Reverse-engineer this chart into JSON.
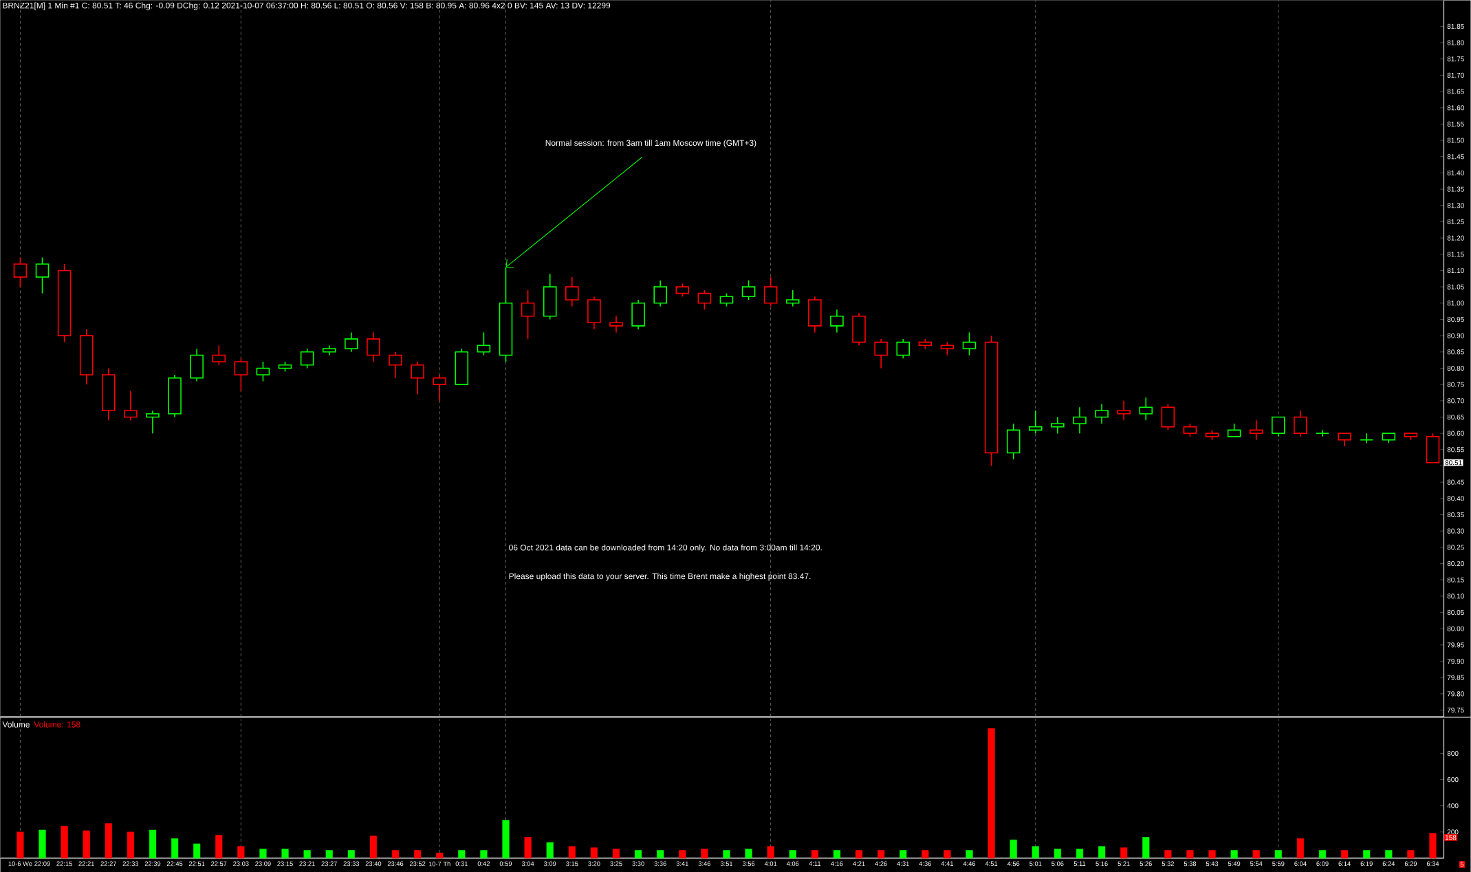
{
  "chart_data": [
    {
      "type": "candlestick",
      "title": "BRNZ21[M]  1 Min  #1 C: 80.51 T: 46 Chg: -0.09 DChg: 0.12 2021-10-07 06:37:00 H: 80.56 L: 80.51 O: 80.56 V: 158 B: 80.95 A: 80.96 4x2 0 BV: 145 AV: 13 DV: 12299",
      "categories": [
        "10-6 We",
        "22:09",
        "22:15",
        "22:21",
        "22:27",
        "22:33",
        "22:39",
        "22:45",
        "22:51",
        "22:57",
        "23:03",
        "23:09",
        "23:15",
        "23:21",
        "23:27",
        "23:33",
        "23:40",
        "23:46",
        "23:52",
        "10-7 Th",
        "0:31",
        "0:42",
        "0:59",
        "3:04",
        "3:09",
        "3:15",
        "3:20",
        "3:25",
        "3:30",
        "3:36",
        "3:41",
        "3:46",
        "3:51",
        "3:56",
        "4:01",
        "4:06",
        "4:11",
        "4:16",
        "4:21",
        "4:26",
        "4:31",
        "4:36",
        "4:41",
        "4:46",
        "4:51",
        "4:56",
        "5:01",
        "5:06",
        "5:11",
        "5:16",
        "5:21",
        "5:26",
        "5:32",
        "5:38",
        "5:43",
        "5:49",
        "5:54",
        "5:59",
        "6:04",
        "6:09",
        "6:14",
        "6:19",
        "6:24",
        "6:29",
        "6:34"
      ],
      "ohlc": [
        [
          81.12,
          81.14,
          81.05,
          81.08
        ],
        [
          81.08,
          81.14,
          81.03,
          81.12
        ],
        [
          81.1,
          81.12,
          80.88,
          80.9
        ],
        [
          80.9,
          80.92,
          80.75,
          80.78
        ],
        [
          80.78,
          80.8,
          80.64,
          80.67
        ],
        [
          80.67,
          80.73,
          80.64,
          80.65
        ],
        [
          80.65,
          80.67,
          80.6,
          80.66
        ],
        [
          80.66,
          80.78,
          80.65,
          80.77
        ],
        [
          80.77,
          80.86,
          80.76,
          80.84
        ],
        [
          80.84,
          80.87,
          80.81,
          80.82
        ],
        [
          80.82,
          80.83,
          80.73,
          80.78
        ],
        [
          80.78,
          80.82,
          80.76,
          80.8
        ],
        [
          80.8,
          80.82,
          80.79,
          80.81
        ],
        [
          80.81,
          80.86,
          80.8,
          80.85
        ],
        [
          80.85,
          80.87,
          80.84,
          80.86
        ],
        [
          80.86,
          80.91,
          80.85,
          80.89
        ],
        [
          80.89,
          80.91,
          80.82,
          80.84
        ],
        [
          80.84,
          80.85,
          80.77,
          80.81
        ],
        [
          80.81,
          80.82,
          80.72,
          80.77
        ],
        [
          80.77,
          80.78,
          80.7,
          80.75
        ],
        [
          80.75,
          80.86,
          80.75,
          80.85
        ],
        [
          80.85,
          80.91,
          80.84,
          80.87
        ],
        [
          80.84,
          81.11,
          80.82,
          81.0
        ],
        [
          81.0,
          81.04,
          80.89,
          80.96
        ],
        [
          80.96,
          81.09,
          80.95,
          81.05
        ],
        [
          81.05,
          81.08,
          80.99,
          81.01
        ],
        [
          81.01,
          81.02,
          80.92,
          80.94
        ],
        [
          80.94,
          80.96,
          80.91,
          80.93
        ],
        [
          80.93,
          81.01,
          80.92,
          81.0
        ],
        [
          81.0,
          81.07,
          80.99,
          81.05
        ],
        [
          81.05,
          81.06,
          81.02,
          81.03
        ],
        [
          81.03,
          81.04,
          80.98,
          81.0
        ],
        [
          81.0,
          81.03,
          80.99,
          81.02
        ],
        [
          81.02,
          81.07,
          81.01,
          81.05
        ],
        [
          81.05,
          81.08,
          80.99,
          81.0
        ],
        [
          81.0,
          81.04,
          80.99,
          81.01
        ],
        [
          81.01,
          81.02,
          80.91,
          80.93
        ],
        [
          80.93,
          80.98,
          80.91,
          80.96
        ],
        [
          80.96,
          80.97,
          80.87,
          80.88
        ],
        [
          80.88,
          80.89,
          80.8,
          80.84
        ],
        [
          80.84,
          80.89,
          80.83,
          80.88
        ],
        [
          80.88,
          80.89,
          80.86,
          80.87
        ],
        [
          80.87,
          80.88,
          80.84,
          80.86
        ],
        [
          80.86,
          80.91,
          80.84,
          80.88
        ],
        [
          80.88,
          80.9,
          80.5,
          80.54
        ],
        [
          80.54,
          80.63,
          80.52,
          80.61
        ],
        [
          80.61,
          80.67,
          80.6,
          80.62
        ],
        [
          80.62,
          80.65,
          80.6,
          80.63
        ],
        [
          80.63,
          80.68,
          80.6,
          80.65
        ],
        [
          80.65,
          80.69,
          80.63,
          80.67
        ],
        [
          80.67,
          80.7,
          80.64,
          80.66
        ],
        [
          80.66,
          80.71,
          80.64,
          80.68
        ],
        [
          80.68,
          80.69,
          80.61,
          80.62
        ],
        [
          80.62,
          80.63,
          80.59,
          80.6
        ],
        [
          80.6,
          80.61,
          80.58,
          80.59
        ],
        [
          80.59,
          80.63,
          80.59,
          80.61
        ],
        [
          80.61,
          80.64,
          80.58,
          80.6
        ],
        [
          80.6,
          80.65,
          80.59,
          80.65
        ],
        [
          80.65,
          80.67,
          80.59,
          80.6
        ],
        [
          80.6,
          80.61,
          80.59,
          80.6
        ],
        [
          80.6,
          80.6,
          80.56,
          80.58
        ],
        [
          80.58,
          80.6,
          80.57,
          80.58
        ],
        [
          80.58,
          80.6,
          80.57,
          80.6
        ],
        [
          80.6,
          80.6,
          80.58,
          80.59
        ],
        [
          80.59,
          80.6,
          80.51,
          80.51
        ]
      ],
      "colors": [
        "#ff0000",
        "#00ff00",
        "#ff0000",
        "#ff0000",
        "#ff0000",
        "#ff0000",
        "#00ff00",
        "#00ff00",
        "#00ff00",
        "#ff0000",
        "#ff0000",
        "#00ff00",
        "#00ff00",
        "#00ff00",
        "#00ff00",
        "#00ff00",
        "#ff0000",
        "#ff0000",
        "#ff0000",
        "#ff0000",
        "#00ff00",
        "#00ff00",
        "#00ff00",
        "#ff0000",
        "#00ff00",
        "#ff0000",
        "#ff0000",
        "#ff0000",
        "#00ff00",
        "#00ff00",
        "#ff0000",
        "#ff0000",
        "#00ff00",
        "#00ff00",
        "#ff0000",
        "#00ff00",
        "#ff0000",
        "#00ff00",
        "#ff0000",
        "#ff0000",
        "#00ff00",
        "#ff0000",
        "#ff0000",
        "#00ff00",
        "#ff0000",
        "#00ff00",
        "#00ff00",
        "#00ff00",
        "#00ff00",
        "#00ff00",
        "#ff0000",
        "#00ff00",
        "#ff0000",
        "#ff0000",
        "#ff0000",
        "#00ff00",
        "#ff0000",
        "#00ff00",
        "#ff0000",
        "#00ff00",
        "#ff0000",
        "#00ff00",
        "#00ff00",
        "#ff0000",
        "#ff0000"
      ],
      "ylim": [
        79.73,
        81.93
      ],
      "yticks": [
        79.75,
        {
          "value": 79.8,
          "label": "79.80"
        },
        79.85,
        {
          "value": 79.9,
          "label": "79.90"
        },
        79.95,
        {
          "value": 80.0,
          "label": "80.00"
        },
        80.05,
        {
          "value": 80.1,
          "label": "80.10"
        },
        80.15,
        {
          "value": 80.2,
          "label": "80.20"
        },
        80.25,
        {
          "value": 80.3,
          "label": "80.30"
        },
        80.35,
        {
          "value": 80.4,
          "label": "80.40"
        },
        80.45,
        {
          "value": 80.5,
          "label": null
        },
        80.55,
        {
          "value": 80.6,
          "label": "80.60"
        },
        80.65,
        {
          "value": 80.7,
          "label": "80.70"
        },
        80.75,
        {
          "value": 80.8,
          "label": "80.80"
        },
        80.85,
        {
          "value": 80.9,
          "label": "80.90"
        },
        80.95,
        {
          "value": 81.0,
          "label": "81.00"
        },
        81.05,
        {
          "value": 81.1,
          "label": "81.10"
        },
        81.15,
        {
          "value": 81.2,
          "label": "81.20"
        },
        81.25,
        {
          "value": 81.3,
          "label": "81.30"
        },
        81.35,
        {
          "value": 81.4,
          "label": "81.40"
        },
        81.45,
        {
          "value": 81.5,
          "label": "81.50"
        },
        81.55,
        {
          "value": 81.6,
          "label": "81.60"
        },
        81.65,
        {
          "value": 81.7,
          "label": "81.70"
        },
        81.75,
        {
          "value": 81.8,
          "label": "81.80"
        },
        81.85
      ],
      "tick_labels": "y",
      "ref_lines": [
        {
          "axis": "x",
          "value": "10-6 We",
          "color": "#808080",
          "line_style": "dashed"
        },
        {
          "axis": "x",
          "value": "23:03",
          "color": "#808080",
          "line_style": "dashed"
        },
        {
          "axis": "x",
          "value": "10-7 Th",
          "color": "#808080",
          "line_style": "dashed"
        },
        {
          "axis": "x",
          "value": "0:59",
          "color": "#808080",
          "line_style": "dashed"
        },
        {
          "axis": "x",
          "value": "4:01",
          "color": "#808080",
          "line_style": "dashed"
        },
        {
          "axis": "x",
          "value": "5:01",
          "color": "#808080",
          "line_style": "dashed"
        },
        {
          "axis": "x",
          "value": "5:59",
          "color": "#808080",
          "line_style": "dashed"
        }
      ],
      "annotations": [
        {
          "text": "Normal session: from 3am till 1am Moscow time (GMT+3)",
          "x": "0:59",
          "y": 81.11
        },
        "06 Oct 2021 data can be downloaded from 14:20 only. No data from 3:00am till 14:20.",
        "Please upload this data to your server. This time Brent make a highest point 83.47.",
        {
          "text": "80.51",
          "y": 80.51
        }
      ]
    },
    {
      "type": "bar",
      "title": "Volume",
      "subtitle": "Volume: 158",
      "categories": [
        "10-6 We",
        "22:09",
        "22:15",
        "22:21",
        "22:27",
        "22:33",
        "22:39",
        "22:45",
        "22:51",
        "22:57",
        "23:03",
        "23:09",
        "23:15",
        "23:21",
        "23:27",
        "23:33",
        "23:40",
        "23:46",
        "23:52",
        "10-7 Th",
        "0:31",
        "0:42",
        "0:59",
        "3:04",
        "3:09",
        "3:15",
        "3:20",
        "3:25",
        "3:30",
        "3:36",
        "3:41",
        "3:46",
        "3:51",
        "3:56",
        "4:01",
        "4:06",
        "4:11",
        "4:16",
        "4:21",
        "4:26",
        "4:31",
        "4:36",
        "4:41",
        "4:46",
        "4:51",
        "4:56",
        "5:01",
        "5:06",
        "5:11",
        "5:16",
        "5:21",
        "5:26",
        "5:32",
        "5:38",
        "5:43",
        "5:49",
        "5:54",
        "5:59",
        "6:04",
        "6:09",
        "6:14",
        "6:19",
        "6:24",
        "6:29",
        "6:34"
      ],
      "values": [
        200,
        215,
        245,
        210,
        265,
        200,
        215,
        150,
        110,
        175,
        90,
        70,
        70,
        60,
        60,
        60,
        170,
        60,
        60,
        40,
        60,
        60,
        290,
        160,
        120,
        90,
        80,
        70,
        60,
        60,
        60,
        70,
        60,
        70,
        90,
        60,
        60,
        60,
        60,
        60,
        60,
        60,
        60,
        60,
        990,
        140,
        90,
        70,
        70,
        90,
        80,
        160,
        60,
        60,
        60,
        60,
        60,
        60,
        150,
        60,
        60,
        60,
        60,
        60,
        190
      ],
      "colors": [
        "#ff0000",
        "#00ff00",
        "#ff0000",
        "#ff0000",
        "#ff0000",
        "#ff0000",
        "#00ff00",
        "#00ff00",
        "#00ff00",
        "#ff0000",
        "#ff0000",
        "#00ff00",
        "#00ff00",
        "#00ff00",
        "#00ff00",
        "#00ff00",
        "#ff0000",
        "#ff0000",
        "#ff0000",
        "#ff0000",
        "#00ff00",
        "#00ff00",
        "#00ff00",
        "#ff0000",
        "#00ff00",
        "#ff0000",
        "#ff0000",
        "#ff0000",
        "#00ff00",
        "#00ff00",
        "#ff0000",
        "#ff0000",
        "#00ff00",
        "#00ff00",
        "#ff0000",
        "#00ff00",
        "#ff0000",
        "#00ff00",
        "#ff0000",
        "#ff0000",
        "#00ff00",
        "#ff0000",
        "#ff0000",
        "#00ff00",
        "#ff0000",
        "#00ff00",
        "#00ff00",
        "#00ff00",
        "#00ff00",
        "#00ff00",
        "#ff0000",
        "#00ff00",
        "#ff0000",
        "#ff0000",
        "#ff0000",
        "#00ff00",
        "#ff0000",
        "#00ff00",
        "#ff0000",
        "#00ff00",
        "#ff0000",
        "#00ff00",
        "#00ff00",
        "#ff0000",
        "#ff0000"
      ],
      "ylim": [
        0,
        1060
      ],
      "yticks": [
        200,
        400,
        600,
        800
      ],
      "ref_lines": [
        {
          "axis": "x",
          "value": "10-6 We",
          "color": "#808080",
          "line_style": "dashed"
        },
        {
          "axis": "x",
          "value": "23:03",
          "color": "#808080",
          "line_style": "dashed"
        },
        {
          "axis": "x",
          "value": "10-7 Th",
          "color": "#808080",
          "line_style": "dashed"
        },
        {
          "axis": "x",
          "value": "0:59",
          "color": "#808080",
          "line_style": "dashed"
        },
        {
          "axis": "x",
          "value": "4:01",
          "color": "#808080",
          "line_style": "dashed"
        },
        {
          "axis": "x",
          "value": "5:01",
          "color": "#808080",
          "line_style": "dashed"
        },
        {
          "axis": "x",
          "value": "5:59",
          "color": "#808080",
          "line_style": "dashed"
        }
      ],
      "annotations": [
        {
          "text": "158",
          "y": 158
        },
        "5"
      ]
    }
  ]
}
